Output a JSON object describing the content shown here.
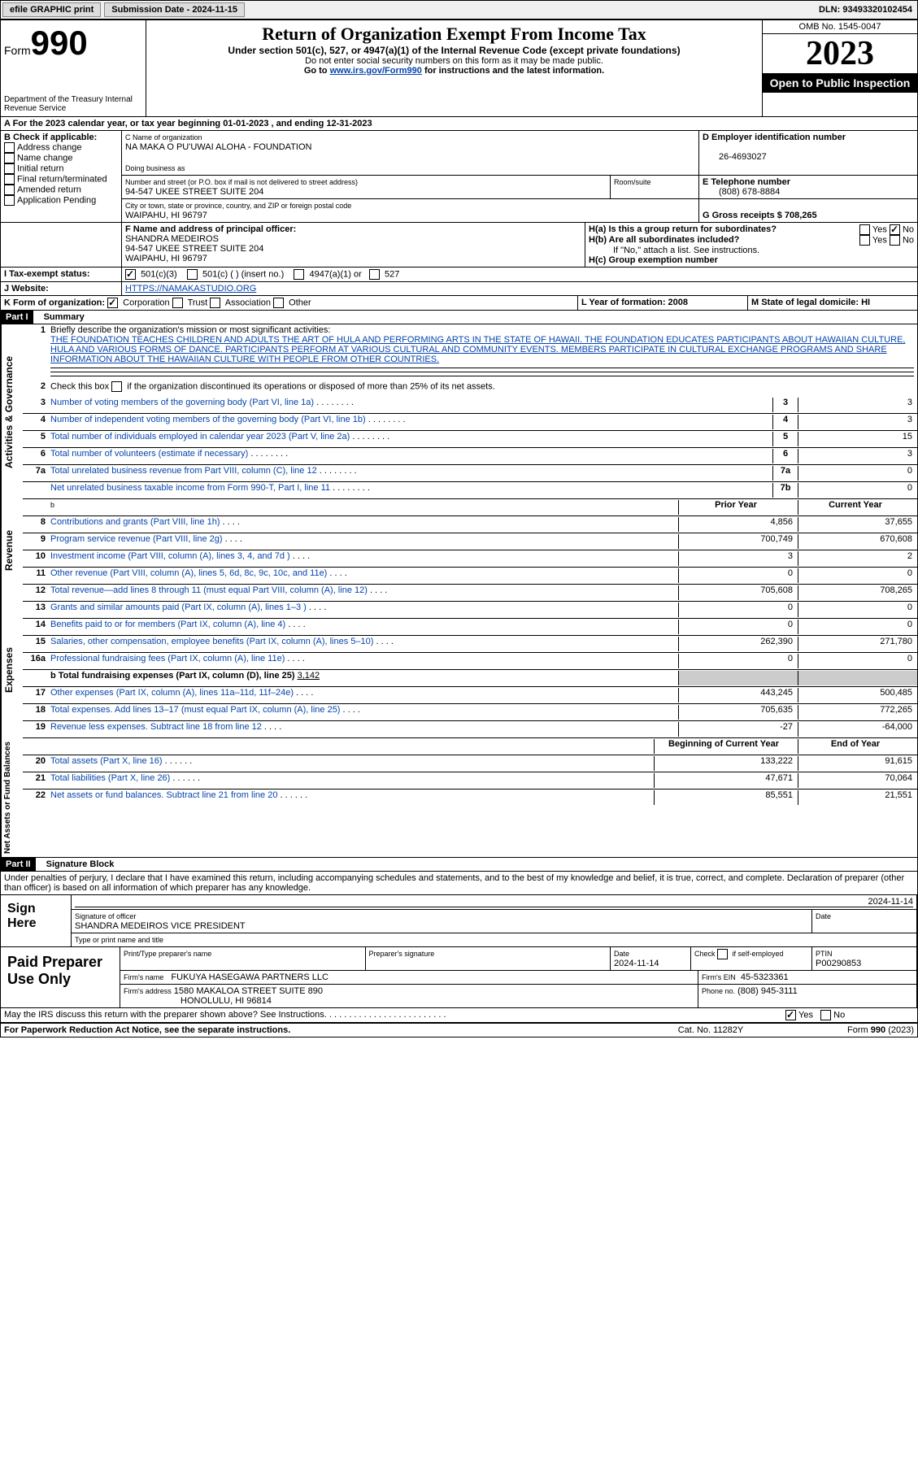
{
  "topbar": {
    "efile_label": "efile GRAPHIC print",
    "submission_label": "Submission Date - 2024-11-15",
    "dln_label": "DLN: 93493320102454"
  },
  "header": {
    "form_label": "Form",
    "form_num": "990",
    "dept": "Department of the Treasury Internal Revenue Service",
    "title": "Return of Organization Exempt From Income Tax",
    "subtitle": "Under section 501(c), 527, or 4947(a)(1) of the Internal Revenue Code (except private foundations)",
    "ssn_note": "Do not enter social security numbers on this form as it may be made public.",
    "goto_pre": "Go to ",
    "goto_link": "www.irs.gov/Form990",
    "goto_post": " for instructions and the latest information.",
    "omb": "OMB No. 1545-0047",
    "year": "2023",
    "inspection": "Open to Public Inspection"
  },
  "sectionA": {
    "a_label": "A For the 2023 calendar year, or tax year beginning 01-01-2023",
    "a_end": ", and ending 12-31-2023",
    "b_label": "B Check if applicable:",
    "b_items": [
      "Address change",
      "Name change",
      "Initial return",
      "Final return/terminated",
      "Amended return",
      "Application Pending"
    ],
    "c_name_label": "C Name of organization",
    "c_name": "NA MAKA O PU'UWAI ALOHA - FOUNDATION",
    "dba_label": "Doing business as",
    "street_label": "Number and street (or P.O. box if mail is not delivered to street address)",
    "street": "94-547 UKEE STREET SUITE 204",
    "room_label": "Room/suite",
    "city_label": "City or town, state or province, country, and ZIP or foreign postal code",
    "city": "WAIPAHU, HI  96797",
    "d_label": "D Employer identification number",
    "d_val": "26-4693027",
    "e_label": "E Telephone number",
    "e_val": "(808) 678-8884",
    "g_label": "G Gross receipts $ 708,265",
    "f_label": "F  Name and address of principal officer:",
    "f_name": "SHANDRA MEDEIROS",
    "f_addr1": "94-547 UKEE STREET SUITE 204",
    "f_addr2": "WAIPAHU, HI  96797",
    "ha_label": "H(a)  Is this a group return for subordinates?",
    "hb_label": "H(b)  Are all subordinates included?",
    "hb_note": "If \"No,\" attach a list. See instructions.",
    "hc_label": "H(c)  Group exemption number",
    "yes": "Yes",
    "no": "No",
    "i_label": "I  Tax-exempt status:",
    "i_501c3": "501(c)(3)",
    "i_501c": "501(c) (  ) (insert no.)",
    "i_4947": "4947(a)(1) or",
    "i_527": "527",
    "j_label": "J  Website:",
    "j_val": "HTTPS://NAMAKASTUDIO.ORG",
    "k_label": "K Form of organization:",
    "k_corp": "Corporation",
    "k_trust": "Trust",
    "k_assoc": "Association",
    "k_other": "Other",
    "l_label": "L Year of formation: 2008",
    "m_label": "M State of legal domicile: HI"
  },
  "part1": {
    "header": "Part I",
    "title": "Summary",
    "vlabel_gov": "Activities & Governance",
    "vlabel_rev": "Revenue",
    "vlabel_exp": "Expenses",
    "vlabel_net": "Net Assets or Fund Balances",
    "line1_label": "Briefly describe the organization's mission or most significant activities:",
    "line1_text": "THE FOUNDATION TEACHES CHILDREN AND ADULTS THE ART OF HULA AND PERFORMING ARTS IN THE STATE OF HAWAII. THE FOUNDATION EDUCATES PARTICIPANTS ABOUT HAWAIIAN CULTURE, HULA AND VARIOUS FORMS OF DANCE. PARTICIPANTS PERFORM AT VARIOUS CULTURAL AND COMMUNITY EVENTS. MEMBERS PARTICIPATE IN CULTURAL EXCHANGE PROGRAMS AND SHARE INFORMATION ABOUT THE HAWAIIAN CULTURE WITH PEOPLE FROM OTHER COUNTRIES.",
    "line2": "Check this box      if the organization discontinued its operations or disposed of more than 25% of its net assets.",
    "lines_gov": [
      {
        "n": "3",
        "t": "Number of voting members of the governing body (Part VI, line 1a)",
        "box": "3",
        "v": "3"
      },
      {
        "n": "4",
        "t": "Number of independent voting members of the governing body (Part VI, line 1b)",
        "box": "4",
        "v": "3"
      },
      {
        "n": "5",
        "t": "Total number of individuals employed in calendar year 2023 (Part V, line 2a)",
        "box": "5",
        "v": "15"
      },
      {
        "n": "6",
        "t": "Total number of volunteers (estimate if necessary)",
        "box": "6",
        "v": "3"
      },
      {
        "n": "7a",
        "t": "Total unrelated business revenue from Part VIII, column (C), line 12",
        "box": "7a",
        "v": "0"
      },
      {
        "n": "",
        "t": "Net unrelated business taxable income from Form 990-T, Part I, line 11",
        "box": "7b",
        "v": "0"
      }
    ],
    "prior_year": "Prior Year",
    "current_year": "Current Year",
    "beg_year": "Beginning of Current Year",
    "end_year": "End of Year",
    "lines_rev": [
      {
        "n": "8",
        "t": "Contributions and grants (Part VIII, line 1h)",
        "p": "4,856",
        "c": "37,655"
      },
      {
        "n": "9",
        "t": "Program service revenue (Part VIII, line 2g)",
        "p": "700,749",
        "c": "670,608"
      },
      {
        "n": "10",
        "t": "Investment income (Part VIII, column (A), lines 3, 4, and 7d )",
        "p": "3",
        "c": "2"
      },
      {
        "n": "11",
        "t": "Other revenue (Part VIII, column (A), lines 5, 6d, 8c, 9c, 10c, and 11e)",
        "p": "0",
        "c": "0"
      },
      {
        "n": "12",
        "t": "Total revenue—add lines 8 through 11 (must equal Part VIII, column (A), line 12)",
        "p": "705,608",
        "c": "708,265"
      }
    ],
    "lines_exp": [
      {
        "n": "13",
        "t": "Grants and similar amounts paid (Part IX, column (A), lines 1–3 )",
        "p": "0",
        "c": "0"
      },
      {
        "n": "14",
        "t": "Benefits paid to or for members (Part IX, column (A), line 4)",
        "p": "0",
        "c": "0"
      },
      {
        "n": "15",
        "t": "Salaries, other compensation, employee benefits (Part IX, column (A), lines 5–10)",
        "p": "262,390",
        "c": "271,780"
      },
      {
        "n": "16a",
        "t": "Professional fundraising fees (Part IX, column (A), line 11e)",
        "p": "0",
        "c": "0"
      }
    ],
    "line16b_label": "b  Total fundraising expenses (Part IX, column (D), line 25) ",
    "line16b_val": "3,142",
    "lines_exp2": [
      {
        "n": "17",
        "t": "Other expenses (Part IX, column (A), lines 11a–11d, 11f–24e)",
        "p": "443,245",
        "c": "500,485"
      },
      {
        "n": "18",
        "t": "Total expenses. Add lines 13–17 (must equal Part IX, column (A), line 25)",
        "p": "705,635",
        "c": "772,265"
      },
      {
        "n": "19",
        "t": "Revenue less expenses. Subtract line 18 from line 12",
        "p": "-27",
        "c": "-64,000"
      }
    ],
    "lines_net": [
      {
        "n": "20",
        "t": "Total assets (Part X, line 16)",
        "p": "133,222",
        "c": "91,615"
      },
      {
        "n": "21",
        "t": "Total liabilities (Part X, line 26)",
        "p": "47,671",
        "c": "70,064"
      },
      {
        "n": "22",
        "t": "Net assets or fund balances. Subtract line 21 from line 20",
        "p": "85,551",
        "c": "21,551"
      }
    ]
  },
  "part2": {
    "header": "Part II",
    "title": "Signature Block",
    "penalty": "Under penalties of perjury, I declare that I have examined this return, including accompanying schedules and statements, and to the best of my knowledge and belief, it is true, correct, and complete. Declaration of preparer (other than officer) is based on all information of which preparer has any knowledge.",
    "sign_here": "Sign Here",
    "sig_date": "2024-11-14",
    "sig_officer_label": "Signature of officer",
    "sig_officer": "SHANDRA MEDEIROS  VICE PRESIDENT",
    "sig_date_label": "Date",
    "type_name_label": "Type or print name and title",
    "paid_label": "Paid Preparer Use Only",
    "prep_name_label": "Print/Type preparer's name",
    "prep_sig_label": "Preparer's signature",
    "prep_date_label": "Date",
    "prep_date": "2024-11-14",
    "prep_check_label": "Check      if self-employed",
    "ptin_label": "PTIN",
    "ptin": "P00290853",
    "firm_name_label": "Firm's name",
    "firm_name": "FUKUYA HASEGAWA PARTNERS LLC",
    "firm_ein_label": "Firm's EIN",
    "firm_ein": "45-5323361",
    "firm_addr_label": "Firm's address",
    "firm_addr1": "1580 MAKALOA STREET SUITE 890",
    "firm_addr2": "HONOLULU, HI  96814",
    "phone_label": "Phone no.",
    "phone": "(808) 945-3111",
    "discuss": "May the IRS discuss this return with the preparer shown above? See Instructions.",
    "yes": "Yes",
    "no": "No"
  },
  "footer": {
    "paperwork": "For Paperwork Reduction Act Notice, see the separate instructions.",
    "cat": "Cat. No. 11282Y",
    "form": "Form 990 (2023)"
  }
}
